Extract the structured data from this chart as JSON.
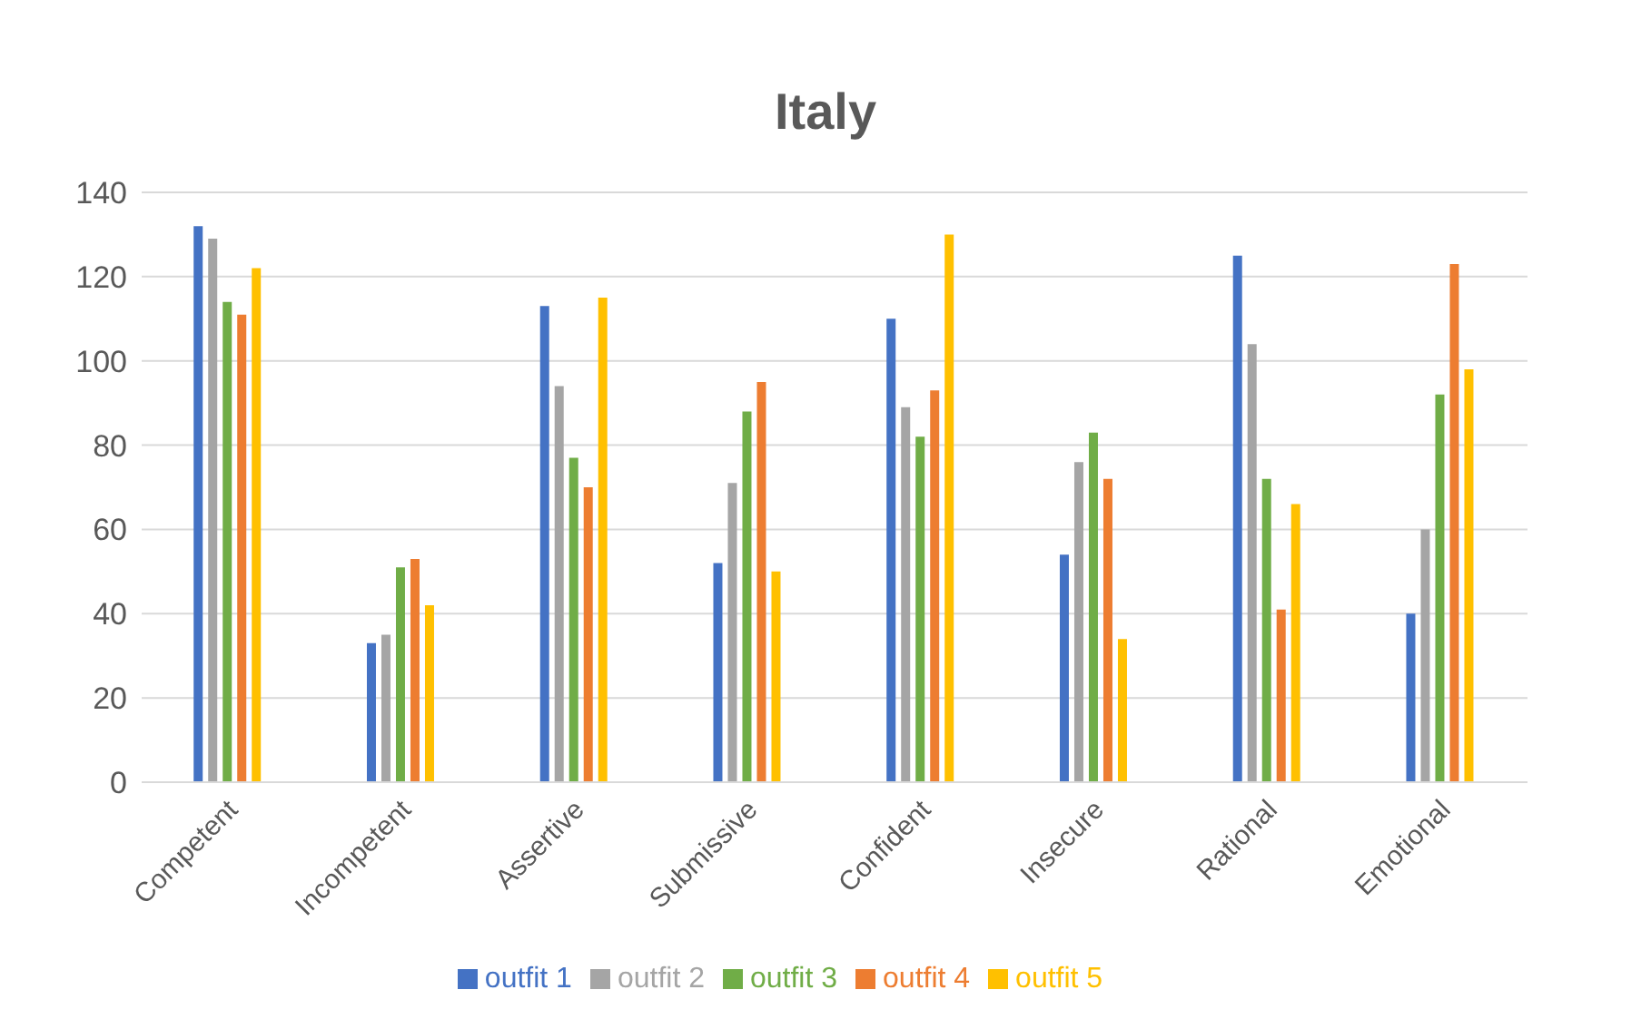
{
  "chart_data": {
    "type": "bar",
    "title": "Italy",
    "categories": [
      "Competent",
      "Incompetent",
      "Assertive",
      "Submissive",
      "Confident",
      "Insecure",
      "Rational",
      "Emotional"
    ],
    "series": [
      {
        "name": "outfit 1",
        "color": "#4472c4",
        "values": [
          132,
          33,
          113,
          52,
          110,
          54,
          125,
          40
        ]
      },
      {
        "name": "outfit 2",
        "color": "#a5a5a5",
        "values": [
          129,
          35,
          94,
          71,
          89,
          76,
          104,
          60
        ]
      },
      {
        "name": "outfit 3",
        "color": "#70ad47",
        "values": [
          114,
          51,
          77,
          88,
          82,
          83,
          72,
          92
        ]
      },
      {
        "name": "outfit 4",
        "color": "#ed7d31",
        "values": [
          111,
          53,
          70,
          95,
          93,
          72,
          41,
          123
        ]
      },
      {
        "name": "outfit 5",
        "color": "#ffc000",
        "values": [
          122,
          42,
          115,
          50,
          130,
          34,
          66,
          98
        ]
      }
    ],
    "ylim": [
      0,
      140
    ],
    "yticks": [
      0,
      20,
      40,
      60,
      80,
      100,
      120,
      140
    ],
    "grid": "y",
    "legend": "bottom"
  }
}
